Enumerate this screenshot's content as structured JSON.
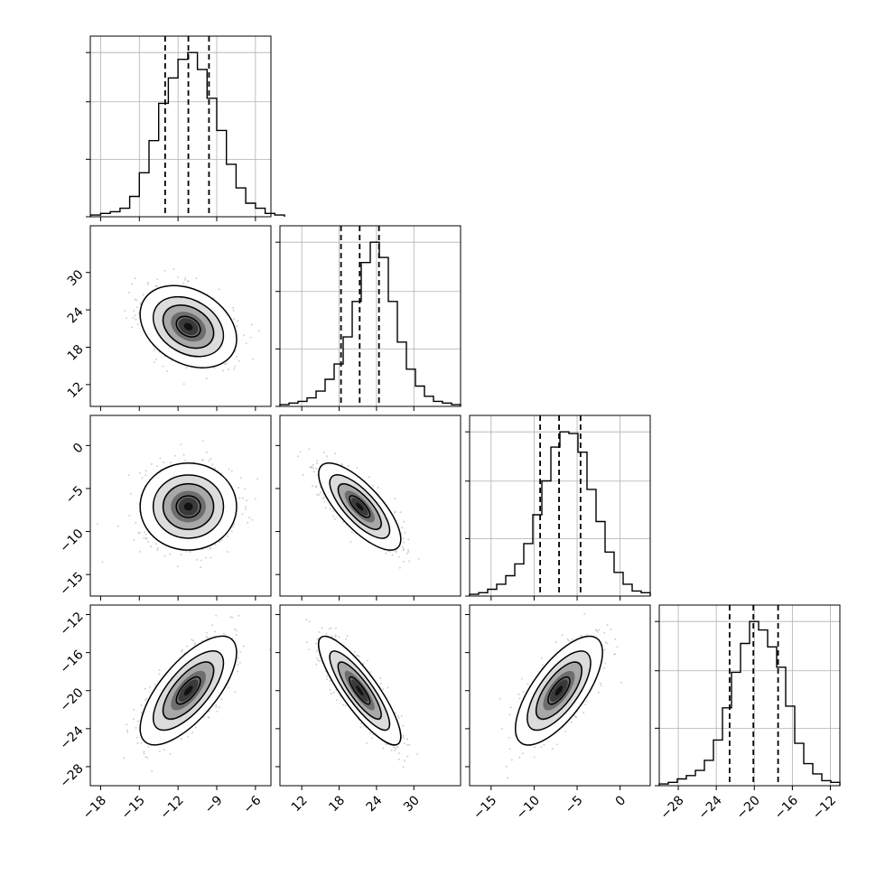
{
  "chart_data": {
    "type": "corner",
    "parameters": [
      {
        "range": [
          -18.8,
          -4.8
        ],
        "ticks": [
          -18,
          -15,
          -12,
          -9,
          -6
        ],
        "hist": {
          "start": -18.75,
          "step": 0.75,
          "counts": [
            1,
            2,
            3,
            5,
            12,
            26,
            45,
            67,
            82,
            93,
            97,
            87,
            70,
            51,
            31,
            17,
            8,
            5,
            2,
            1
          ]
        },
        "quantiles": [
          -13.0,
          -11.2,
          -9.6
        ],
        "mean": -11.2,
        "sd": 1.7
      },
      {
        "range": [
          8.5,
          37.5
        ],
        "ticks": [
          12,
          18,
          24,
          30
        ],
        "hist": {
          "start": 8.5,
          "step": 1.45,
          "counts": [
            1,
            2,
            3,
            5,
            9,
            16,
            25,
            41,
            62,
            85,
            97,
            88,
            62,
            38,
            22,
            12,
            6,
            3,
            2,
            1
          ]
        },
        "quantiles": [
          18.3,
          21.3,
          24.4
        ],
        "mean": 21.3,
        "sd": 3.0
      },
      {
        "range": [
          -17.5,
          3.5
        ],
        "ticks": [
          -15,
          -10,
          -5,
          0
        ],
        "hist": {
          "start": -17.5,
          "step": 1.05,
          "counts": [
            1,
            2,
            4,
            7,
            12,
            19,
            31,
            48,
            68,
            88,
            97,
            96,
            85,
            63,
            44,
            26,
            14,
            7,
            3,
            2
          ]
        },
        "quantiles": [
          -9.3,
          -7.1,
          -4.6
        ],
        "mean": -7.1,
        "sd": 2.3
      },
      {
        "range": [
          -30,
          -11
        ],
        "ticks": [
          -28,
          -24,
          -20,
          -16,
          -12
        ],
        "hist": {
          "start": -30.0,
          "step": 0.95,
          "counts": [
            1,
            2,
            4,
            6,
            9,
            15,
            27,
            46,
            67,
            84,
            97,
            92,
            82,
            70,
            47,
            25,
            13,
            7,
            3,
            2
          ]
        },
        "quantiles": [
          -22.6,
          -20.1,
          -17.5
        ],
        "mean": -20.0,
        "sd": 2.6
      }
    ],
    "correlations": [
      [
        1.0,
        -0.3,
        0.0,
        0.7
      ],
      [
        -0.3,
        1.0,
        -0.75,
        -0.85
      ],
      [
        0.0,
        -0.75,
        1.0,
        0.7
      ],
      [
        0.7,
        -0.85,
        0.7,
        1.0
      ]
    ],
    "contour_levels_sigma": [
      0.5,
      1.0,
      1.5,
      2.0
    ],
    "colors": {
      "line": "#000000",
      "grid": "#b0b0b0",
      "scatter": "#9a9a9a",
      "density": "#000000"
    }
  }
}
